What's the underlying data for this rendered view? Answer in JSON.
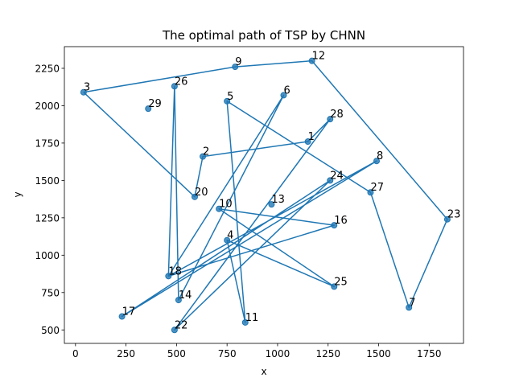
{
  "chart_data": {
    "type": "line",
    "title": "The optimal path of TSP by CHNN",
    "xlabel": "x",
    "ylabel": "y",
    "xlim": [
      -55,
      1920
    ],
    "ylim": [
      410,
      2395
    ],
    "xticks": [
      0,
      250,
      500,
      750,
      1000,
      1250,
      1500,
      1750
    ],
    "yticks": [
      500,
      750,
      1000,
      1250,
      1500,
      1750,
      2000,
      2250
    ],
    "grid": false,
    "line_color": "#1f77b4",
    "cities": [
      {
        "label": "1",
        "x": 1150,
        "y": 1760
      },
      {
        "label": "2",
        "x": 630,
        "y": 1660
      },
      {
        "label": "3",
        "x": 40,
        "y": 2090
      },
      {
        "label": "4",
        "x": 750,
        "y": 1100
      },
      {
        "label": "5",
        "x": 750,
        "y": 2030
      },
      {
        "label": "6",
        "x": 1030,
        "y": 2070
      },
      {
        "label": "7",
        "x": 1650,
        "y": 650
      },
      {
        "label": "8",
        "x": 1490,
        "y": 1630
      },
      {
        "label": "9",
        "x": 790,
        "y": 2260
      },
      {
        "label": "10",
        "x": 710,
        "y": 1310
      },
      {
        "label": "11",
        "x": 840,
        "y": 550
      },
      {
        "label": "12",
        "x": 1170,
        "y": 2300
      },
      {
        "label": "13",
        "x": 970,
        "y": 1340
      },
      {
        "label": "14",
        "x": 510,
        "y": 700
      },
      {
        "label": "16",
        "x": 1280,
        "y": 1200
      },
      {
        "label": "17",
        "x": 230,
        "y": 590
      },
      {
        "label": "18",
        "x": 460,
        "y": 860
      },
      {
        "label": "20",
        "x": 590,
        "y": 1390
      },
      {
        "label": "22",
        "x": 490,
        "y": 500
      },
      {
        "label": "23",
        "x": 1840,
        "y": 1240
      },
      {
        "label": "24",
        "x": 1260,
        "y": 1500
      },
      {
        "label": "25",
        "x": 1280,
        "y": 790
      },
      {
        "label": "26",
        "x": 490,
        "y": 2130
      },
      {
        "label": "27",
        "x": 1460,
        "y": 1420
      },
      {
        "label": "28",
        "x": 1260,
        "y": 1910
      },
      {
        "label": "29",
        "x": 360,
        "y": 1980
      }
    ],
    "path": [
      "3",
      "9",
      "12",
      "23",
      "7",
      "27",
      "5",
      "11",
      "4",
      "25",
      "10",
      "16",
      "18",
      "6",
      "14",
      "26",
      "18",
      "8",
      "17",
      "24",
      "22",
      "28",
      "1",
      "2",
      "20",
      "3"
    ]
  }
}
